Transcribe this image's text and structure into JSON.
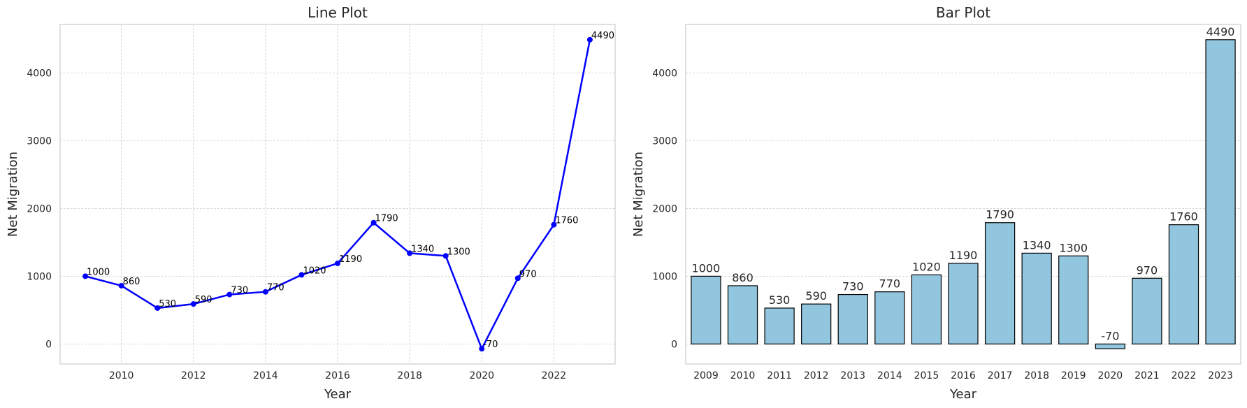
{
  "chart_data": [
    {
      "type": "line",
      "title": "Line Plot",
      "xlabel": "Year",
      "ylabel": "Net Migration",
      "x": [
        2009,
        2010,
        2011,
        2012,
        2013,
        2014,
        2015,
        2016,
        2017,
        2018,
        2019,
        2020,
        2021,
        2022,
        2023
      ],
      "values": [
        1000,
        860,
        530,
        590,
        730,
        770,
        1020,
        1190,
        1790,
        1340,
        1300,
        -70,
        970,
        1760,
        4490
      ],
      "xticks": [
        2010,
        2012,
        2014,
        2016,
        2018,
        2020,
        2022
      ],
      "yticks": [
        0,
        1000,
        2000,
        3000,
        4000
      ],
      "xlim": [
        2008.3,
        2023.7
      ],
      "ylim": [
        -295,
        4715
      ],
      "grid": true,
      "line_color": "#0000ff",
      "marker_color": "#0000ff"
    },
    {
      "type": "bar",
      "title": "Bar Plot",
      "xlabel": "Year",
      "ylabel": "Net Migration",
      "categories": [
        "2009",
        "2010",
        "2011",
        "2012",
        "2013",
        "2014",
        "2015",
        "2016",
        "2017",
        "2018",
        "2019",
        "2020",
        "2021",
        "2022",
        "2023"
      ],
      "values": [
        1000,
        860,
        530,
        590,
        730,
        770,
        1020,
        1190,
        1790,
        1340,
        1300,
        -70,
        970,
        1760,
        4490
      ],
      "yticks": [
        0,
        1000,
        2000,
        3000,
        4000
      ],
      "ylim": [
        -295,
        4715
      ],
      "grid": true,
      "bar_color": "#92c5de",
      "edge_color": "#000000"
    }
  ]
}
